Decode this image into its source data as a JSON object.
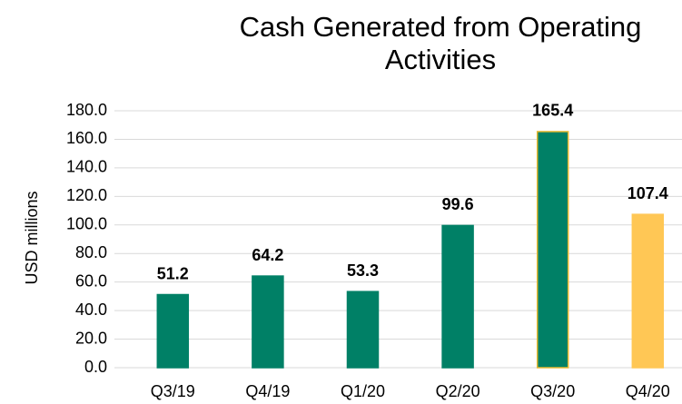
{
  "chart_data": {
    "type": "bar",
    "title": "Cash Generated from Operating Activities",
    "y_label": "USD millions",
    "categories": [
      "Q3/19",
      "Q4/19",
      "Q1/20",
      "Q2/20",
      "Q3/20",
      "Q4/20"
    ],
    "values": [
      51.2,
      64.2,
      53.3,
      99.6,
      165.4,
      107.4
    ],
    "colors": [
      "#008066",
      "#008066",
      "#008066",
      "#008066",
      "#008066",
      "#FFC755"
    ],
    "edge_colors": [
      "#008066",
      "#008066",
      "#008066",
      "#008066",
      "#E8B830",
      "#FFC755"
    ],
    "ylim": [
      0,
      180
    ],
    "yticks": [
      {
        "value": 0,
        "label": "0.0"
      },
      {
        "value": 20,
        "label": "20.0"
      },
      {
        "value": 40,
        "label": "40.0"
      },
      {
        "value": 60,
        "label": "60.0"
      },
      {
        "value": 80,
        "label": "80.0"
      },
      {
        "value": 100,
        "label": "100.0"
      },
      {
        "value": 120,
        "label": "120.0"
      },
      {
        "value": 140,
        "label": "140.0"
      },
      {
        "value": 160,
        "label": "160.0"
      },
      {
        "value": 180,
        "label": "180.0"
      }
    ],
    "grid": true
  }
}
